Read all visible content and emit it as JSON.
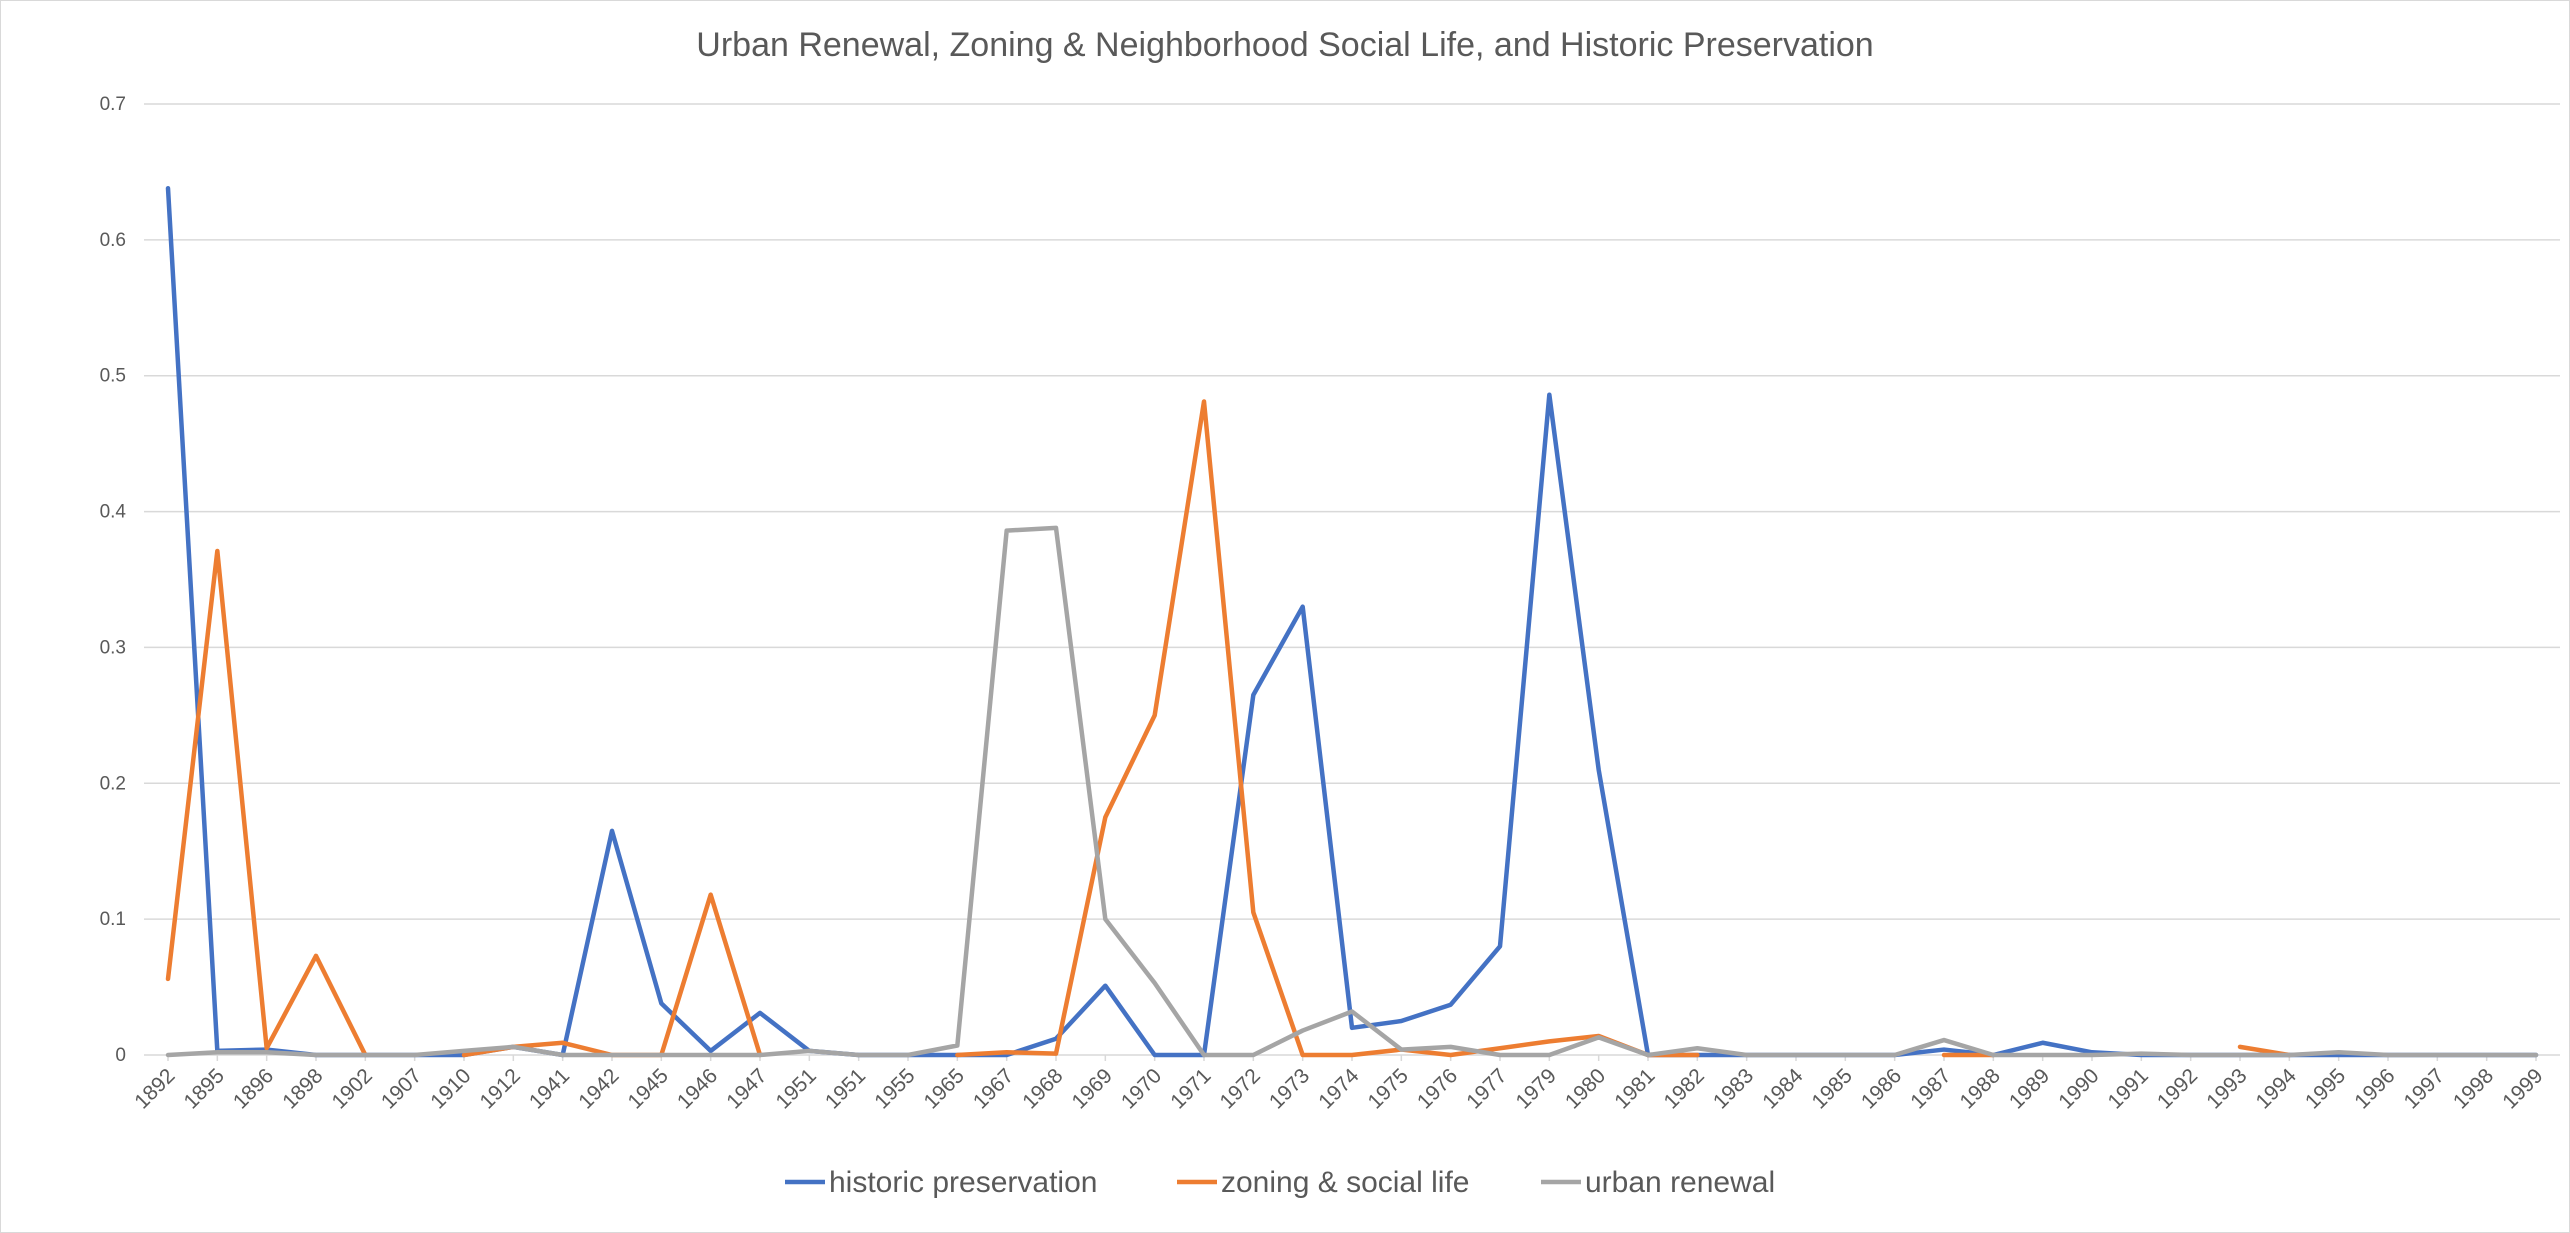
{
  "chart_data": {
    "type": "line",
    "title": "Urban Renewal, Zoning & Neighborhood Social Life, and Historic Preservation",
    "xlabel": "",
    "ylabel": "",
    "ylim": [
      0,
      0.7
    ],
    "yticks": [
      "0",
      "0.1",
      "0.2",
      "0.3",
      "0.4",
      "0.5",
      "0.6",
      "0.7"
    ],
    "grid": true,
    "legend_position": "bottom",
    "categories": [
      "1892",
      "1895",
      "1896",
      "1898",
      "1902",
      "1907",
      "1910",
      "1912",
      "1941",
      "1942",
      "1945",
      "1946",
      "1947",
      "1951",
      "1951",
      "1955",
      "1965",
      "1967",
      "1968",
      "1969",
      "1970",
      "1971",
      "1972",
      "1973",
      "1974",
      "1975",
      "1976",
      "1977",
      "1979",
      "1980",
      "1981",
      "1982",
      "1983",
      "1984",
      "1985",
      "1986",
      "1987",
      "1988",
      "1989",
      "1990",
      "1991",
      "1992",
      "1993",
      "1994",
      "1995",
      "1996",
      "1997",
      "1998",
      "1999"
    ],
    "series": [
      {
        "name": "historic preservation",
        "color": "#4472c4",
        "values": [
          0.638,
          0.003,
          0.004,
          0,
          0,
          0,
          0,
          0.006,
          0,
          0.165,
          0.038,
          0.003,
          0.031,
          0.003,
          0,
          0,
          0,
          0,
          0.012,
          0.051,
          0,
          0,
          0.265,
          0.33,
          0.02,
          0.025,
          0.037,
          0.08,
          0.486,
          0.21,
          0,
          0,
          0,
          0,
          0,
          0,
          0.004,
          0,
          0.009,
          0.002,
          0,
          0,
          0,
          0,
          0,
          0,
          0,
          0,
          0
        ]
      },
      {
        "name": "zoning & social life",
        "color": "#ed7d31",
        "values": [
          0.056,
          0.371,
          0.005,
          0.073,
          0,
          null,
          0,
          0.006,
          0.009,
          0,
          0,
          0.118,
          0,
          null,
          null,
          null,
          0,
          0.002,
          0.001,
          0.175,
          0.25,
          0.481,
          0.105,
          0,
          0,
          0.004,
          0,
          0.005,
          0.01,
          0.014,
          0,
          0,
          null,
          null,
          null,
          null,
          0,
          0,
          null,
          null,
          null,
          null,
          0.006,
          0,
          null,
          null,
          null,
          null,
          null
        ]
      },
      {
        "name": "urban renewal",
        "color": "#a5a5a5",
        "values": [
          0,
          0.002,
          0.002,
          0,
          0,
          0,
          0.003,
          0.006,
          0,
          0,
          0,
          0,
          0,
          0.003,
          0,
          0,
          0.007,
          0.386,
          0.388,
          0.1,
          0.053,
          0,
          0,
          0.018,
          0.032,
          0.004,
          0.006,
          0,
          0,
          0.013,
          0,
          0.005,
          0,
          0,
          0,
          0,
          0.011,
          0,
          0,
          0,
          0.001,
          0,
          0,
          0,
          0.002,
          0,
          0,
          0,
          0
        ]
      }
    ]
  }
}
